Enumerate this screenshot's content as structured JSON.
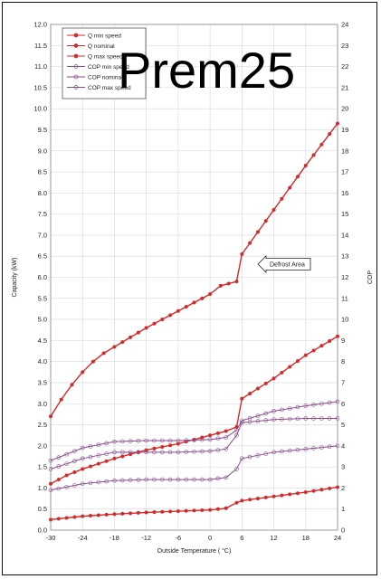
{
  "overlay_text": "Prem25",
  "chart_data": {
    "type": "line",
    "title": "",
    "xlabel": "Outside Temperature ( °C)",
    "ylabel": "Capacity (kW)",
    "y2label": "COP",
    "xlim": [
      -30,
      24
    ],
    "ylim": [
      0,
      12
    ],
    "y2lim": [
      0,
      24
    ],
    "xticks": [
      "-30",
      "-24",
      "-18",
      "-12",
      "-6",
      "0",
      "6",
      "12",
      "18",
      "24"
    ],
    "yticks": [
      "0.0",
      "0.5",
      "1.0",
      "1.5",
      "2.0",
      "2.5",
      "3.0",
      "3.5",
      "4.0",
      "4.5",
      "5.0",
      "5.5",
      "6.0",
      "6.5",
      "7.0",
      "7.5",
      "8.0",
      "8.5",
      "9.0",
      "9.5",
      "10.0",
      "10.5",
      "11.0",
      "11.5",
      "12.0"
    ],
    "y2ticks": [
      "0",
      "1",
      "2",
      "3",
      "4",
      "5",
      "6",
      "7",
      "8",
      "9",
      "10",
      "11",
      "12",
      "13",
      "14",
      "15",
      "16",
      "17",
      "18",
      "19",
      "20",
      "21",
      "22",
      "23",
      "24"
    ],
    "grid": true,
    "legend_position": "top-left",
    "annotation": "Defrost Area",
    "series": [
      {
        "name": "Q min speed",
        "axis": "left",
        "color": "#d42a2a",
        "marker": "filled",
        "x": [
          -30,
          -24,
          -18,
          -12,
          -6,
          0,
          3,
          5,
          6,
          12,
          18,
          24
        ],
        "y": [
          0.25,
          0.33,
          0.38,
          0.42,
          0.45,
          0.48,
          0.52,
          0.65,
          0.7,
          0.8,
          0.9,
          1.02
        ]
      },
      {
        "name": "Q nominal",
        "axis": "left",
        "color": "#d42a2a",
        "marker": "filled",
        "x": [
          -30,
          -27,
          -24,
          -18,
          -12,
          -6,
          0,
          3,
          5,
          6,
          12,
          18,
          24
        ],
        "y": [
          1.1,
          1.3,
          1.45,
          1.7,
          1.9,
          2.05,
          2.25,
          2.35,
          2.45,
          3.12,
          3.6,
          4.15,
          4.6
        ]
      },
      {
        "name": "Q max speed",
        "axis": "left",
        "color": "#d42a2a",
        "marker": "filled",
        "x": [
          -30,
          -28,
          -26,
          -24,
          -22,
          -20,
          -18,
          -12,
          -6,
          0,
          2,
          5,
          6,
          12,
          18,
          24
        ],
        "y": [
          2.7,
          3.1,
          3.45,
          3.75,
          4.0,
          4.2,
          4.35,
          4.8,
          5.2,
          5.6,
          5.8,
          5.9,
          6.55,
          7.6,
          8.65,
          9.65
        ]
      },
      {
        "name": "COP min speed",
        "axis": "right",
        "color": "#8a4a8c",
        "marker": "open",
        "x": [
          -30,
          -24,
          -18,
          -12,
          -6,
          0,
          3,
          5,
          6,
          12,
          18,
          24
        ],
        "y": [
          3.3,
          3.9,
          4.2,
          4.25,
          4.25,
          4.3,
          4.4,
          4.75,
          5.2,
          5.65,
          5.9,
          6.1
        ]
      },
      {
        "name": "COP nominal",
        "axis": "right",
        "color": "#8a4a8c",
        "marker": "open",
        "x": [
          -30,
          -24,
          -18,
          -12,
          -6,
          0,
          3,
          5,
          6,
          12,
          18,
          24
        ],
        "y": [
          2.9,
          3.4,
          3.7,
          3.7,
          3.7,
          3.75,
          3.85,
          4.5,
          5.1,
          5.25,
          5.3,
          5.3
        ]
      },
      {
        "name": "COP max speed",
        "axis": "right",
        "color": "#8a4a8c",
        "marker": "open",
        "x": [
          -30,
          -24,
          -18,
          -12,
          -6,
          0,
          3,
          5,
          6,
          12,
          18,
          24
        ],
        "y": [
          1.9,
          2.2,
          2.35,
          2.4,
          2.4,
          2.4,
          2.5,
          2.9,
          3.4,
          3.7,
          3.85,
          4.0
        ]
      }
    ]
  }
}
